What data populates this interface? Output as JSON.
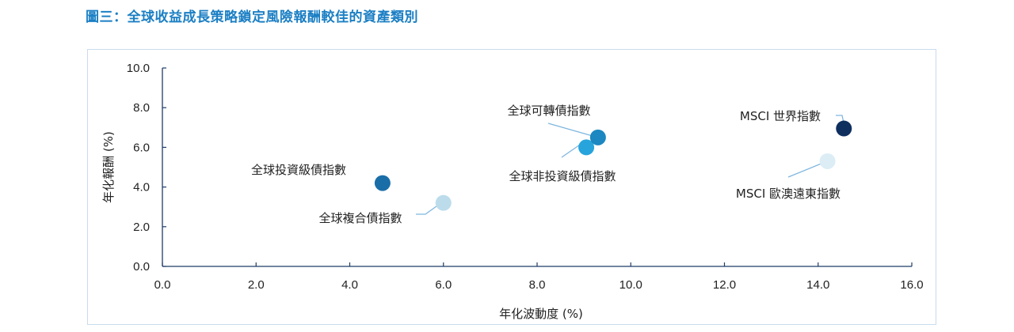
{
  "title": "圖三：全球收益成長策略鎖定風險報酬較佳的資產類別",
  "chart_data": {
    "type": "scatter",
    "xlabel": "年化波動度 (%)",
    "ylabel": "年化報酬 (%)",
    "xlim": [
      0,
      16
    ],
    "ylim": [
      0,
      10
    ],
    "xticks": [
      "0.0",
      "2.0",
      "4.0",
      "6.0",
      "8.0",
      "10.0",
      "12.0",
      "14.0",
      "16.0"
    ],
    "yticks": [
      "0.0",
      "2.0",
      "4.0",
      "6.0",
      "8.0",
      "10.0"
    ],
    "grid": false,
    "points": [
      {
        "name": "全球投資級債指數",
        "x": 4.7,
        "y": 4.2,
        "color": "#1a6ea8"
      },
      {
        "name": "全球複合債指數",
        "x": 6.0,
        "y": 3.2,
        "color": "#bcdcec"
      },
      {
        "name": "全球非投資級債指數",
        "x": 9.05,
        "y": 6.0,
        "color": "#27a4dc"
      },
      {
        "name": "全球可轉債指數",
        "x": 9.3,
        "y": 6.5,
        "color": "#1c87c0"
      },
      {
        "name": "MSCI 世界指數",
        "x": 14.55,
        "y": 6.95,
        "color": "#0f2f5e"
      },
      {
        "name": "MSCI 歐澳遠東指數",
        "x": 14.2,
        "y": 5.3,
        "color": "#dcedf5"
      }
    ]
  }
}
